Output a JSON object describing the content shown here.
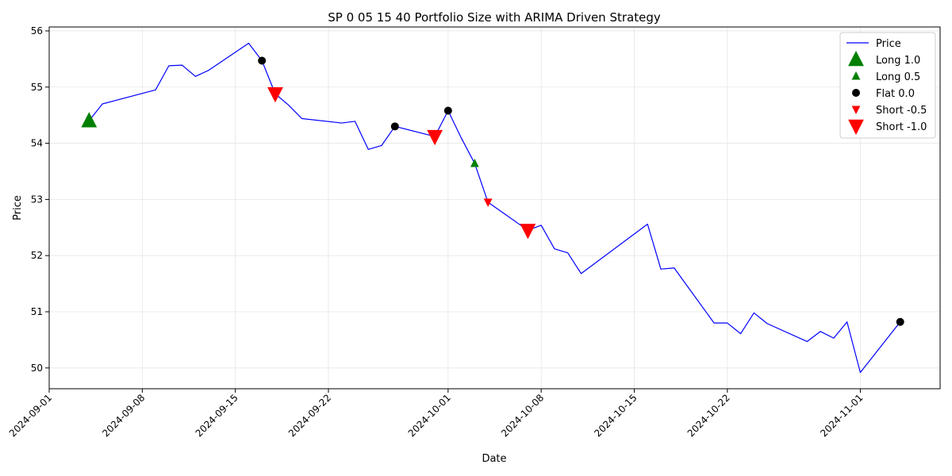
{
  "chart_data": {
    "type": "line",
    "title": "SP 0 05 15 40 Portfolio Size with ARIMA Driven Strategy",
    "xlabel": "Date",
    "ylabel": "Price",
    "xlim": [
      "2024-09-01",
      "2024-11-07"
    ],
    "ylim": [
      49.63,
      56.07
    ],
    "x_ticks": [
      "2024-09-01",
      "2024-09-08",
      "2024-09-15",
      "2024-09-22",
      "2024-10-01",
      "2024-10-08",
      "2024-10-15",
      "2024-10-22",
      "2024-11-01"
    ],
    "y_ticks": [
      50,
      51,
      52,
      53,
      54,
      55,
      56
    ],
    "grid": true,
    "legend_position": "top-right",
    "colors": {
      "price_line": "#0000ff",
      "long": "#008000",
      "short": "#ff0000",
      "flat": "#000000",
      "grid": "#e6e6e6"
    },
    "series": [
      {
        "name": "Price",
        "points": [
          [
            "2024-09-04",
            54.4
          ],
          [
            "2024-09-05",
            54.7
          ],
          [
            "2024-09-09",
            54.95
          ],
          [
            "2024-09-10",
            55.38
          ],
          [
            "2024-09-11",
            55.39
          ],
          [
            "2024-09-12",
            55.19
          ],
          [
            "2024-09-13",
            55.3
          ],
          [
            "2024-09-16",
            55.78
          ],
          [
            "2024-09-17",
            55.47
          ],
          [
            "2024-09-18",
            54.88
          ],
          [
            "2024-09-19",
            54.68
          ],
          [
            "2024-09-20",
            54.44
          ],
          [
            "2024-09-23",
            54.36
          ],
          [
            "2024-09-24",
            54.39
          ],
          [
            "2024-09-25",
            53.89
          ],
          [
            "2024-09-26",
            53.96
          ],
          [
            "2024-09-27",
            54.3
          ],
          [
            "2024-09-30",
            54.12
          ],
          [
            "2024-10-01",
            54.58
          ],
          [
            "2024-10-02",
            54.09
          ],
          [
            "2024-10-03",
            53.64
          ],
          [
            "2024-10-04",
            52.95
          ],
          [
            "2024-10-07",
            52.45
          ],
          [
            "2024-10-08",
            52.54
          ],
          [
            "2024-10-09",
            52.12
          ],
          [
            "2024-10-10",
            52.05
          ],
          [
            "2024-10-11",
            51.68
          ],
          [
            "2024-10-16",
            52.56
          ],
          [
            "2024-10-17",
            51.76
          ],
          [
            "2024-10-18",
            51.78
          ],
          [
            "2024-10-21",
            50.8
          ],
          [
            "2024-10-22",
            50.8
          ],
          [
            "2024-10-23",
            50.61
          ],
          [
            "2024-10-24",
            50.98
          ],
          [
            "2024-10-25",
            50.79
          ],
          [
            "2024-10-28",
            50.47
          ],
          [
            "2024-10-29",
            50.65
          ],
          [
            "2024-10-30",
            50.53
          ],
          [
            "2024-10-31",
            50.82
          ],
          [
            "2024-11-01",
            49.92
          ],
          [
            "2024-11-04",
            50.82
          ]
        ]
      },
      {
        "name": "Long 1.0",
        "marker": "triangle-up",
        "size": "large",
        "color": "#008000",
        "points": [
          [
            "2024-09-04",
            54.4
          ]
        ]
      },
      {
        "name": "Long 0.5",
        "marker": "triangle-up",
        "size": "small",
        "color": "#008000",
        "points": [
          [
            "2024-10-03",
            53.64
          ]
        ]
      },
      {
        "name": "Flat 0.0",
        "marker": "circle",
        "size": "small",
        "color": "#000000",
        "points": [
          [
            "2024-09-17",
            55.47
          ],
          [
            "2024-09-27",
            54.3
          ],
          [
            "2024-10-01",
            54.58
          ],
          [
            "2024-11-04",
            50.82
          ]
        ]
      },
      {
        "name": "Short -0.5",
        "marker": "triangle-down",
        "size": "small",
        "color": "#ff0000",
        "points": [
          [
            "2024-10-04",
            52.95
          ]
        ]
      },
      {
        "name": "Short -1.0",
        "marker": "triangle-down",
        "size": "large",
        "color": "#ff0000",
        "points": [
          [
            "2024-09-18",
            54.88
          ],
          [
            "2024-09-30",
            54.12
          ],
          [
            "2024-10-07",
            52.45
          ]
        ]
      }
    ]
  }
}
